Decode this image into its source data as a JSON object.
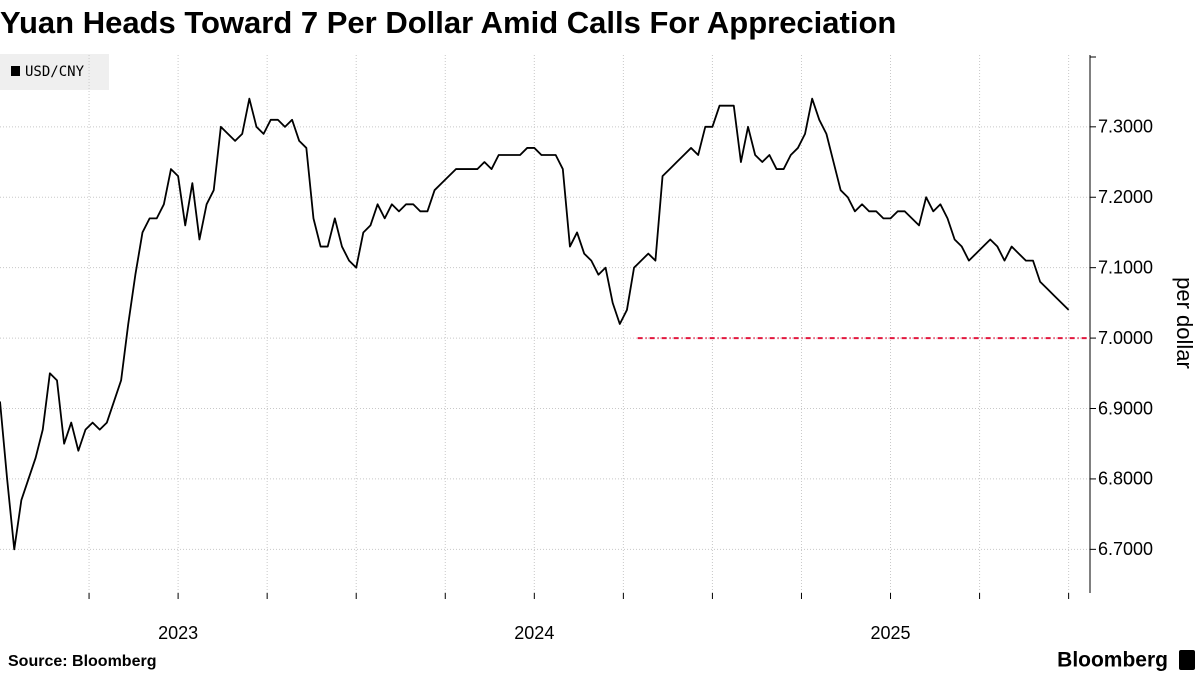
{
  "chart_data": {
    "type": "line",
    "title": "Yuan Heads Toward 7 Per Dollar Amid Calls For Appreciation",
    "y_axis_label": "per dollar",
    "source": "Source: Bloomberg",
    "brand": "Bloomberg",
    "x": [
      2023.0,
      2023.02,
      2023.04,
      2023.06,
      2023.08,
      2023.1,
      2023.12,
      2023.14,
      2023.16,
      2023.18,
      2023.2,
      2023.22,
      2023.24,
      2023.26,
      2023.28,
      2023.3,
      2023.32,
      2023.34,
      2023.36,
      2023.38,
      2023.4,
      2023.42,
      2023.44,
      2023.46,
      2023.48,
      2023.5,
      2023.52,
      2023.54,
      2023.56,
      2023.58,
      2023.6,
      2023.62,
      2023.64,
      2023.66,
      2023.68,
      2023.7,
      2023.72,
      2023.74,
      2023.76,
      2023.78,
      2023.8,
      2023.82,
      2023.84,
      2023.86,
      2023.88,
      2023.9,
      2023.92,
      2023.94,
      2023.96,
      2023.98,
      2024.0,
      2024.02,
      2024.04,
      2024.06,
      2024.08,
      2024.1,
      2024.12,
      2024.14,
      2024.16,
      2024.18,
      2024.2,
      2024.22,
      2024.24,
      2024.26,
      2024.28,
      2024.3,
      2024.32,
      2024.34,
      2024.36,
      2024.38,
      2024.4,
      2024.42,
      2024.44,
      2024.46,
      2024.48,
      2024.5,
      2024.52,
      2024.54,
      2024.56,
      2024.58,
      2024.6,
      2024.62,
      2024.64,
      2024.66,
      2024.68,
      2024.7,
      2024.72,
      2024.74,
      2024.76,
      2024.78,
      2024.8,
      2024.82,
      2024.84,
      2024.86,
      2024.88,
      2024.9,
      2024.92,
      2024.94,
      2024.96,
      2024.98,
      2025.0,
      2025.02,
      2025.04,
      2025.06,
      2025.08,
      2025.1,
      2025.12,
      2025.14,
      2025.16,
      2025.18,
      2025.2,
      2025.22,
      2025.24,
      2025.26,
      2025.28,
      2025.3,
      2025.32,
      2025.34,
      2025.36,
      2025.38,
      2025.4,
      2025.42,
      2025.44,
      2025.46,
      2025.48,
      2025.5,
      2025.52,
      2025.54,
      2025.56,
      2025.58,
      2025.6,
      2025.62,
      2025.64,
      2025.66,
      2025.68,
      2025.7,
      2025.72,
      2025.74,
      2025.76,
      2025.78,
      2025.8,
      2025.82,
      2025.84,
      2025.86,
      2025.88,
      2025.9,
      2025.92,
      2025.94,
      2025.96,
      2025.98,
      2026.0
    ],
    "series": [
      {
        "name": "USD/CNY",
        "color": "#000000",
        "values": [
          6.91,
          6.8,
          6.7,
          6.77,
          6.8,
          6.83,
          6.87,
          6.95,
          6.94,
          6.85,
          6.88,
          6.84,
          6.87,
          6.88,
          6.87,
          6.88,
          6.91,
          6.94,
          7.02,
          7.09,
          7.15,
          7.17,
          7.17,
          7.19,
          7.24,
          7.23,
          7.16,
          7.22,
          7.14,
          7.19,
          7.21,
          7.3,
          7.29,
          7.28,
          7.29,
          7.34,
          7.3,
          7.29,
          7.31,
          7.31,
          7.3,
          7.31,
          7.28,
          7.27,
          7.17,
          7.13,
          7.13,
          7.17,
          7.13,
          7.11,
          7.1,
          7.15,
          7.16,
          7.19,
          7.17,
          7.19,
          7.18,
          7.19,
          7.19,
          7.18,
          7.18,
          7.21,
          7.22,
          7.23,
          7.24,
          7.24,
          7.24,
          7.24,
          7.25,
          7.24,
          7.26,
          7.26,
          7.26,
          7.26,
          7.27,
          7.27,
          7.26,
          7.26,
          7.26,
          7.24,
          7.13,
          7.15,
          7.12,
          7.11,
          7.09,
          7.1,
          7.05,
          7.02,
          7.04,
          7.1,
          7.11,
          7.12,
          7.11,
          7.23,
          7.24,
          7.25,
          7.26,
          7.27,
          7.26,
          7.3,
          7.3,
          7.33,
          7.33,
          7.33,
          7.25,
          7.3,
          7.26,
          7.25,
          7.26,
          7.24,
          7.24,
          7.26,
          7.27,
          7.29,
          7.34,
          7.31,
          7.29,
          7.25,
          7.21,
          7.2,
          7.18,
          7.19,
          7.18,
          7.18,
          7.17,
          7.17,
          7.18,
          7.18,
          7.17,
          7.16,
          7.2,
          7.18,
          7.19,
          7.17,
          7.14,
          7.13,
          7.11,
          7.12,
          7.13,
          7.14,
          7.13,
          7.11,
          7.13,
          7.12,
          7.11,
          7.11,
          7.08,
          7.07,
          7.06,
          7.05,
          7.04
        ]
      }
    ],
    "xlim": [
      2023.0,
      2026.06
    ],
    "xticks": [
      {
        "value": 2023.5,
        "label": "2023"
      },
      {
        "value": 2024.5,
        "label": "2024"
      },
      {
        "value": 2025.5,
        "label": "2025"
      }
    ],
    "xgrid": [
      2023.25,
      2023.5,
      2023.75,
      2024.0,
      2024.25,
      2024.5,
      2024.75,
      2025.0,
      2025.25,
      2025.5,
      2025.75,
      2026.0
    ],
    "ylim": [
      6.638,
      7.402
    ],
    "yticks": [
      {
        "value": 6.7,
        "label": "6.7000"
      },
      {
        "value": 6.8,
        "label": "6.8000"
      },
      {
        "value": 6.9,
        "label": "6.9000"
      },
      {
        "value": 7.0,
        "label": "7.0000"
      },
      {
        "value": 7.1,
        "label": "7.1000"
      },
      {
        "value": 7.2,
        "label": "7.2000"
      },
      {
        "value": 7.3,
        "label": "7.3000"
      }
    ],
    "reference_line": {
      "value": 7.0,
      "x_start": 2024.79,
      "color": "#e3173e"
    },
    "grid": true
  }
}
